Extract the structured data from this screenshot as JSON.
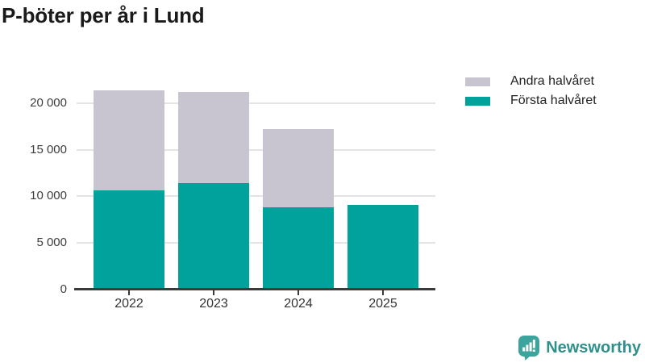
{
  "title": "P-böter per år i Lund",
  "chart_data": {
    "type": "bar",
    "stacked": true,
    "title": "P-böter per år i Lund",
    "xlabel": "",
    "ylabel": "",
    "categories": [
      "2022",
      "2023",
      "2024",
      "2025"
    ],
    "series": [
      {
        "name": "Första halvåret",
        "color": "#00a29b",
        "values": [
          10600,
          11450,
          8850,
          9050
        ]
      },
      {
        "name": "Andra halvåret",
        "color": "#c8c5d1",
        "values": [
          10800,
          9750,
          8350,
          0
        ]
      }
    ],
    "totals": [
      21400,
      21200,
      17200,
      9050
    ],
    "ylim": [
      0,
      22400
    ],
    "yticks": [
      0,
      5000,
      10000,
      15000,
      20000
    ],
    "ytick_labels": [
      "0",
      "5 000",
      "10 000",
      "15 000",
      "20 000"
    ],
    "grid": true,
    "legend_position": "top-right"
  },
  "legend": {
    "items": [
      {
        "label": "Andra halvåret",
        "color": "#c8c5d1"
      },
      {
        "label": "Första halvåret",
        "color": "#00a29b"
      }
    ]
  },
  "branding": {
    "name": "Newsworthy",
    "icon": "newsworthy-logo-icon",
    "text_color": "#2e8f8b",
    "icon_color": "#3ca49d"
  },
  "colors": {
    "background": "#ffffff",
    "title": "#1a1a1a",
    "gridline": "#e4e4e4",
    "axis_line": "#3a3a3a",
    "tick_label": "#3d3d3d"
  }
}
